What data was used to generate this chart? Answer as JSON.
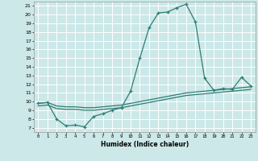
{
  "xlabel": "Humidex (Indice chaleur)",
  "ylabel": "",
  "background_color": "#cce8e8",
  "grid_color": "#ffffff",
  "line_color": "#2d7d74",
  "xlim": [
    -0.5,
    23.5
  ],
  "ylim": [
    6.5,
    21.5
  ],
  "xticks": [
    0,
    1,
    2,
    3,
    4,
    5,
    6,
    7,
    8,
    9,
    10,
    11,
    12,
    13,
    14,
    15,
    16,
    17,
    18,
    19,
    20,
    21,
    22,
    23
  ],
  "yticks": [
    7,
    8,
    9,
    10,
    11,
    12,
    13,
    14,
    15,
    16,
    17,
    18,
    19,
    20,
    21
  ],
  "line1_x": [
    0,
    1,
    2,
    3,
    4,
    5,
    6,
    7,
    8,
    9,
    10,
    11,
    12,
    13,
    14,
    15,
    16,
    17,
    18,
    19,
    20,
    21,
    22,
    23
  ],
  "line1_y": [
    9.8,
    9.9,
    8.0,
    7.2,
    7.3,
    7.1,
    8.3,
    8.6,
    9.0,
    9.3,
    11.2,
    15.0,
    18.5,
    20.2,
    20.3,
    20.8,
    21.2,
    19.2,
    12.7,
    11.3,
    11.5,
    11.4,
    12.8,
    11.8
  ],
  "line2_x": [
    0,
    1,
    2,
    3,
    4,
    5,
    6,
    7,
    8,
    9,
    10,
    11,
    12,
    13,
    14,
    15,
    16,
    17,
    18,
    19,
    20,
    21,
    22,
    23
  ],
  "line2_y": [
    9.8,
    9.9,
    9.5,
    9.4,
    9.4,
    9.3,
    9.3,
    9.4,
    9.5,
    9.6,
    9.8,
    10.0,
    10.2,
    10.4,
    10.6,
    10.8,
    11.0,
    11.1,
    11.2,
    11.3,
    11.4,
    11.5,
    11.6,
    11.7
  ],
  "line3_x": [
    0,
    1,
    2,
    3,
    4,
    5,
    6,
    7,
    8,
    9,
    10,
    11,
    12,
    13,
    14,
    15,
    16,
    17,
    18,
    19,
    20,
    21,
    22,
    23
  ],
  "line3_y": [
    9.5,
    9.6,
    9.2,
    9.1,
    9.1,
    9.0,
    9.0,
    9.1,
    9.2,
    9.3,
    9.5,
    9.7,
    9.9,
    10.1,
    10.3,
    10.5,
    10.7,
    10.8,
    10.9,
    11.0,
    11.1,
    11.2,
    11.3,
    11.4
  ]
}
